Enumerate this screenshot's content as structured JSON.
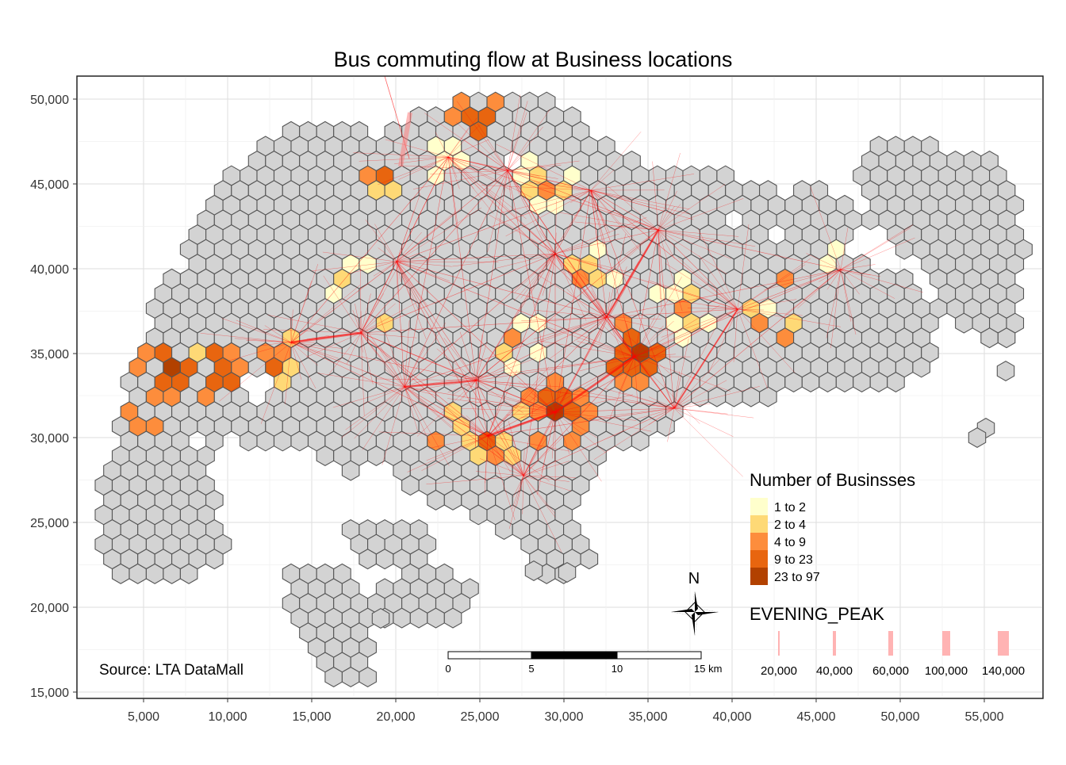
{
  "title": "Bus commuting flow at Business locations",
  "source": "Source: LTA DataMall",
  "x_ticks": [
    "5,000",
    "10,000",
    "15,000",
    "20,000",
    "25,000",
    "30,000",
    "35,000",
    "40,000",
    "45,000",
    "50,000",
    "55,000"
  ],
  "y_ticks": [
    "50,000",
    "45,000",
    "40,000",
    "35,000",
    "30,000",
    "25,000",
    "20,000",
    "15,000"
  ],
  "legend_fill": {
    "title": "Number of Businsses",
    "items": [
      {
        "label": "1 to 2",
        "color": "#ffffcc"
      },
      {
        "label": "2 to 4",
        "color": "#fed976"
      },
      {
        "label": "4 to 9",
        "color": "#fd8d3c"
      },
      {
        "label": "9 to 23",
        "color": "#e8650f"
      },
      {
        "label": "23 to 97",
        "color": "#b24100"
      }
    ]
  },
  "legend_flow": {
    "title": "EVENING_PEAK",
    "items": [
      {
        "label": "20,000",
        "value": 20000
      },
      {
        "label": "40,000",
        "value": 40000
      },
      {
        "label": "60,000",
        "value": 60000
      },
      {
        "label": "100,000",
        "value": 100000
      },
      {
        "label": "140,000",
        "value": 140000
      }
    ],
    "color": "#ffb3b3"
  },
  "north_label": "N",
  "scale_bar": {
    "labels": [
      "0",
      "5",
      "10",
      "15 km"
    ]
  },
  "colors": {
    "hex_empty": "#d3d3d3",
    "hex_stroke": "#555555",
    "flow": "#ff0000",
    "grid": "#dedede"
  }
}
